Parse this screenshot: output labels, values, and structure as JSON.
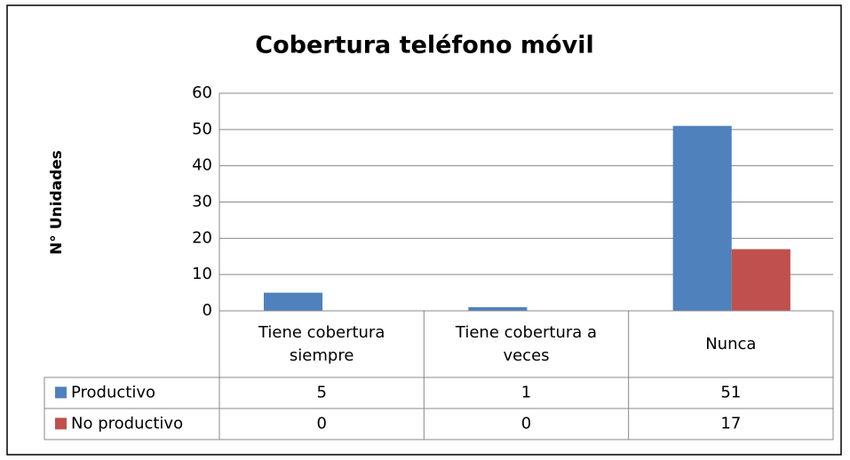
{
  "chart_data": {
    "type": "bar",
    "title": "Cobertura teléfono móvil",
    "y_label": "N° Unidades",
    "categories": [
      "Tiene cobertura siempre",
      "Tiene cobertura a veces",
      "Nunca"
    ],
    "series": [
      {
        "name": "Productivo",
        "color": "#4f81bd",
        "values": [
          5,
          1,
          51
        ]
      },
      {
        "name": "No productivo",
        "color": "#c0504d",
        "values": [
          0,
          0,
          17
        ]
      }
    ],
    "ylim": [
      0,
      60
    ],
    "yticks": [
      0,
      10,
      20,
      30,
      40,
      50,
      60
    ],
    "grid": true,
    "data_table": true
  }
}
